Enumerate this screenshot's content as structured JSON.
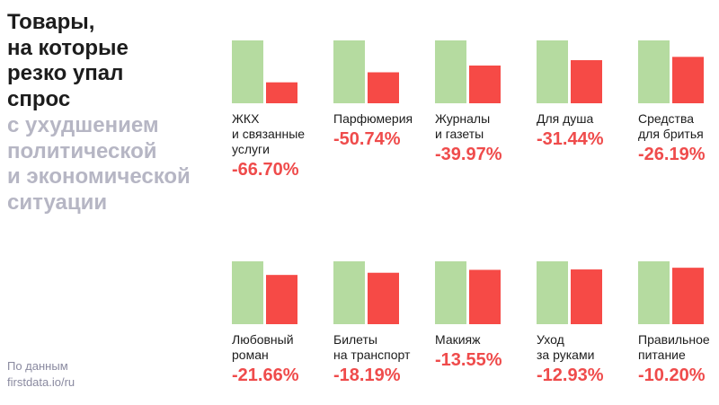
{
  "title": "Товары,\nна которые\nрезко упал\nспрос",
  "subtitle": "с ухудшением\nполитической\nи экономической\nситуации",
  "source": "По данным\nfirstdata.io/ru",
  "colors": {
    "before": "#b5dba0",
    "after": "#f64a46",
    "value_text": "#ef4b4b",
    "subtitle": "#b6b6c4"
  },
  "chart_data": {
    "type": "bar",
    "series": [
      {
        "name": "",
        "color": "#b5dba0"
      },
      {
        "name": "",
        "color": "#f64a46"
      }
    ],
    "items": [
      {
        "label": "ЖКХ\nи связанные\nуслуги",
        "change": -66.7,
        "value_label": "-66.70%",
        "values": [
          100,
          33.3
        ]
      },
      {
        "label": "Парфюмерия",
        "change": -50.74,
        "value_label": "-50.74%",
        "values": [
          100,
          49.26
        ]
      },
      {
        "label": "Журналы\nи газеты",
        "change": -39.97,
        "value_label": "-39.97%",
        "values": [
          100,
          60.03
        ]
      },
      {
        "label": "Для душа",
        "change": -31.44,
        "value_label": "-31.44%",
        "values": [
          100,
          68.56
        ]
      },
      {
        "label": "Средства\nдля бритья",
        "change": -26.19,
        "value_label": "-26.19%",
        "values": [
          100,
          73.81
        ]
      },
      {
        "label": "Любовный\nроман",
        "change": -21.66,
        "value_label": "-21.66%",
        "values": [
          100,
          78.34
        ]
      },
      {
        "label": "Билеты\nна транспорт",
        "change": -18.19,
        "value_label": "-18.19%",
        "values": [
          100,
          81.81
        ]
      },
      {
        "label": "Макияж",
        "change": -13.55,
        "value_label": "-13.55%",
        "values": [
          100,
          86.45
        ]
      },
      {
        "label": "Уход\nза руками",
        "change": -12.93,
        "value_label": "-12.93%",
        "values": [
          100,
          87.07
        ]
      },
      {
        "label": "Правильное\nпитание",
        "change": -10.2,
        "value_label": "-10.20%",
        "values": [
          100,
          89.8
        ]
      }
    ]
  }
}
